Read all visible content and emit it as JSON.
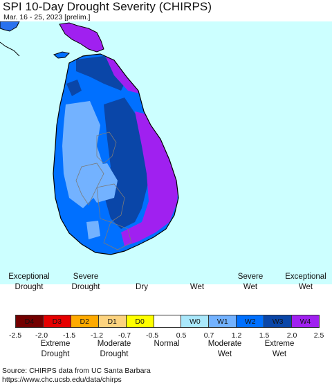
{
  "header": {
    "title": "SPI 10-Day Drought Severity (CHIRPS)",
    "subtitle": "Mar. 16 - 25, 2023 [prelim.]"
  },
  "colors": {
    "ocean": "#ccffff",
    "coast": "#000000",
    "admin_border": "#7a7a7a"
  },
  "legend": {
    "top_labels": [
      {
        "text": "Exceptional\nDrought"
      },
      {
        "text": "Severe\nDrought"
      },
      {
        "text": "Dry"
      },
      {
        "text": "Wet"
      },
      {
        "text": "Severe\nWet"
      },
      {
        "text": "Exceptional\nWet"
      }
    ],
    "cells": [
      {
        "code": "D4",
        "color": "#730000"
      },
      {
        "code": "D3",
        "color": "#e60000"
      },
      {
        "code": "D2",
        "color": "#ffaa00"
      },
      {
        "code": "D1",
        "color": "#fcd37f"
      },
      {
        "code": "D0",
        "color": "#ffff00"
      },
      {
        "code": "",
        "color": "#ffffff"
      },
      {
        "code": "W0",
        "color": "#aae8fb"
      },
      {
        "code": "W1",
        "color": "#73b2ff"
      },
      {
        "code": "W2",
        "color": "#0070ff"
      },
      {
        "code": "W3",
        "color": "#0a46a8"
      },
      {
        "code": "W4",
        "color": "#a020f0"
      }
    ],
    "ticks": [
      "-2.5",
      "-2.0",
      "-1.5",
      "-1.2",
      "-0.7",
      "-0.5",
      "0.5",
      "0.7",
      "1.2",
      "1.5",
      "2.0",
      "2.5"
    ],
    "bottom_labels": [
      {
        "text": "Extreme\nDrought"
      },
      {
        "text": "Moderate\nDrought"
      },
      {
        "text": "Normal"
      },
      {
        "text": "Moderate\nWet"
      },
      {
        "text": "Extreme\nWet"
      }
    ]
  },
  "footer": {
    "source_line1": "Source: CHIRPS data from UC Santa Barbara",
    "source_line2": "https://www.chc.ucsb.edu/data/chirps"
  }
}
